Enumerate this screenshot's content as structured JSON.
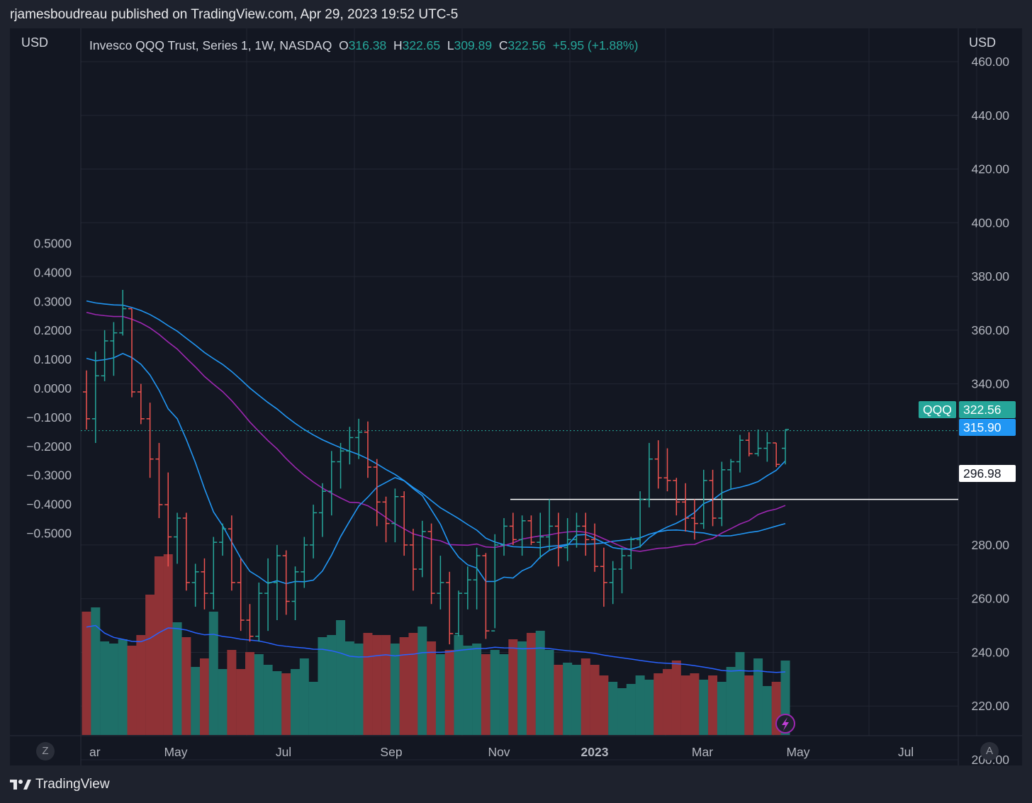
{
  "caption": "rjamesboudreau published on TradingView.com, Apr 29, 2023 19:52 UTC-5",
  "brand": "TradingView",
  "currency_left": "USD",
  "currency_right": "USD",
  "legend": {
    "symbol": "Invesco QQQ Trust, Series 1, 1W, NASDAQ",
    "o_label": "O",
    "o_value": "316.38",
    "h_label": "H",
    "h_value": "322.65",
    "l_label": "L",
    "l_value": "309.89",
    "c_label": "C",
    "c_value": "322.56",
    "change": "+5.95 (+1.88%)"
  },
  "tags": {
    "symbol": "QQQ",
    "last_price": "322.56",
    "ma_price": "315.90",
    "line_price": "296.98"
  },
  "buttons": {
    "left": "Z",
    "right": "A"
  },
  "colors": {
    "up": "#26a69a",
    "down": "#ef5350",
    "ma_fast": "#2962ff",
    "ma_mid": "#2196f3",
    "ma_slow": "#9c27b0",
    "background": "#131722"
  },
  "chart_data": {
    "type": "bar",
    "left_axis": {
      "ticks": [
        "0.5000",
        "0.4000",
        "0.3000",
        "0.2000",
        "0.1000",
        "0.0000",
        "−0.1000",
        "−0.2000",
        "−0.3000",
        "−0.4000",
        "−0.5000"
      ],
      "values": [
        0.5,
        0.4,
        0.3,
        0.2,
        0.1,
        0,
        -0.1,
        -0.2,
        -0.3,
        -0.4,
        -0.5
      ]
    },
    "right_axis": {
      "ticks": [
        "460.00",
        "440.00",
        "420.00",
        "400.00",
        "380.00",
        "360.00",
        "340.00",
        "280.00",
        "260.00",
        "240.00",
        "220.00",
        "200.00"
      ],
      "values": [
        460,
        440,
        420,
        400,
        380,
        360,
        340,
        280,
        260,
        240,
        220,
        200
      ],
      "ylim": [
        195,
        467
      ]
    },
    "x_ticks": [
      "ar",
      "May",
      "Jul",
      "Sep",
      "Nov",
      "2023",
      "Mar",
      "May",
      "Jul"
    ],
    "horizontal_line": 296.98,
    "ohlc": [
      [
        337,
        345,
        323,
        327
      ],
      [
        327,
        352,
        318,
        343
      ],
      [
        343,
        360,
        341,
        356
      ],
      [
        356,
        363,
        343,
        359
      ],
      [
        359,
        375,
        358,
        368
      ],
      [
        368,
        368,
        335,
        337
      ],
      [
        337,
        340,
        325,
        327
      ],
      [
        327,
        333,
        305,
        312
      ],
      [
        312,
        318,
        290,
        295
      ],
      [
        295,
        307,
        272,
        283
      ],
      [
        283,
        292,
        273,
        290
      ],
      [
        290,
        292,
        263,
        266
      ],
      [
        266,
        273,
        257,
        270
      ],
      [
        270,
        275,
        256,
        262
      ],
      [
        262,
        283,
        256,
        281
      ],
      [
        281,
        288,
        276,
        286
      ],
      [
        286,
        291,
        263,
        266
      ],
      [
        266,
        275,
        248,
        252
      ],
      [
        252,
        258,
        244,
        246
      ],
      [
        246,
        266,
        244,
        262
      ],
      [
        262,
        275,
        248,
        266
      ],
      [
        266,
        280,
        252,
        276
      ],
      [
        276,
        278,
        254,
        259
      ],
      [
        259,
        272,
        252,
        270
      ],
      [
        270,
        283,
        264,
        280
      ],
      [
        280,
        295,
        275,
        292
      ],
      [
        292,
        303,
        283,
        300
      ],
      [
        300,
        315,
        291,
        311
      ],
      [
        311,
        318,
        301,
        315
      ],
      [
        315,
        324,
        310,
        320
      ],
      [
        320,
        327,
        312,
        322
      ],
      [
        322,
        326,
        305,
        309
      ],
      [
        309,
        312,
        287,
        296
      ],
      [
        296,
        298,
        281,
        288
      ],
      [
        288,
        301,
        281,
        298
      ],
      [
        298,
        300,
        276,
        280
      ],
      [
        280,
        286,
        263,
        271
      ],
      [
        271,
        289,
        268,
        285
      ],
      [
        285,
        288,
        258,
        262
      ],
      [
        262,
        276,
        256,
        266
      ],
      [
        266,
        270,
        243,
        247
      ],
      [
        247,
        263,
        246,
        262
      ],
      [
        262,
        272,
        256,
        267
      ],
      [
        267,
        279,
        256,
        276
      ],
      [
        276,
        277,
        245,
        248
      ],
      [
        248,
        284,
        249,
        280
      ],
      [
        280,
        290,
        276,
        287
      ],
      [
        287,
        292,
        280,
        282
      ],
      [
        282,
        291,
        276,
        289
      ],
      [
        289,
        291,
        280,
        281
      ],
      [
        281,
        292,
        275,
        283
      ],
      [
        283,
        297,
        278,
        287
      ],
      [
        287,
        292,
        272,
        279
      ],
      [
        279,
        290,
        274,
        282
      ],
      [
        282,
        292,
        279,
        287
      ],
      [
        287,
        292,
        276,
        282
      ],
      [
        282,
        288,
        270,
        272
      ],
      [
        272,
        279,
        257,
        266
      ],
      [
        266,
        274,
        258,
        271
      ],
      [
        271,
        279,
        262,
        276
      ],
      [
        276,
        283,
        271,
        282
      ],
      [
        282,
        300,
        279,
        297
      ],
      [
        297,
        318,
        294,
        312
      ],
      [
        312,
        319,
        301,
        305
      ],
      [
        305,
        316,
        300,
        304
      ],
      [
        304,
        305,
        291,
        296
      ],
      [
        296,
        303,
        285,
        290
      ],
      [
        290,
        297,
        282,
        288
      ],
      [
        288,
        308,
        286,
        304
      ],
      [
        304,
        308,
        287,
        290
      ],
      [
        290,
        311,
        287,
        308
      ],
      [
        308,
        312,
        301,
        311
      ],
      [
        311,
        321,
        307,
        319
      ],
      [
        319,
        322,
        313,
        314
      ],
      [
        314,
        323,
        313,
        316
      ],
      [
        316,
        322,
        311,
        318
      ],
      [
        318,
        318,
        309,
        310
      ],
      [
        316,
        323,
        310,
        323
      ]
    ],
    "volume_relative": [
      0.58,
      0.6,
      0.44,
      0.43,
      0.45,
      0.42,
      0.47,
      0.66,
      0.84,
      0.85,
      0.53,
      0.46,
      0.32,
      0.36,
      0.58,
      0.31,
      0.4,
      0.31,
      0.39,
      0.38,
      0.33,
      0.3,
      0.29,
      0.31,
      0.36,
      0.25,
      0.46,
      0.47,
      0.54,
      0.44,
      0.43,
      0.48,
      0.47,
      0.47,
      0.43,
      0.46,
      0.48,
      0.51,
      0.44,
      0.38,
      0.4,
      0.47,
      0.42,
      0.43,
      0.38,
      0.4,
      0.38,
      0.45,
      0.44,
      0.48,
      0.49,
      0.4,
      0.33,
      0.34,
      0.33,
      0.36,
      0.33,
      0.28,
      0.25,
      0.22,
      0.24,
      0.28,
      0.26,
      0.29,
      0.31,
      0.35,
      0.28,
      0.29,
      0.26,
      0.28,
      0.25,
      0.32,
      0.39,
      0.28,
      0.36,
      0.23,
      0.25,
      0.35
    ]
  }
}
